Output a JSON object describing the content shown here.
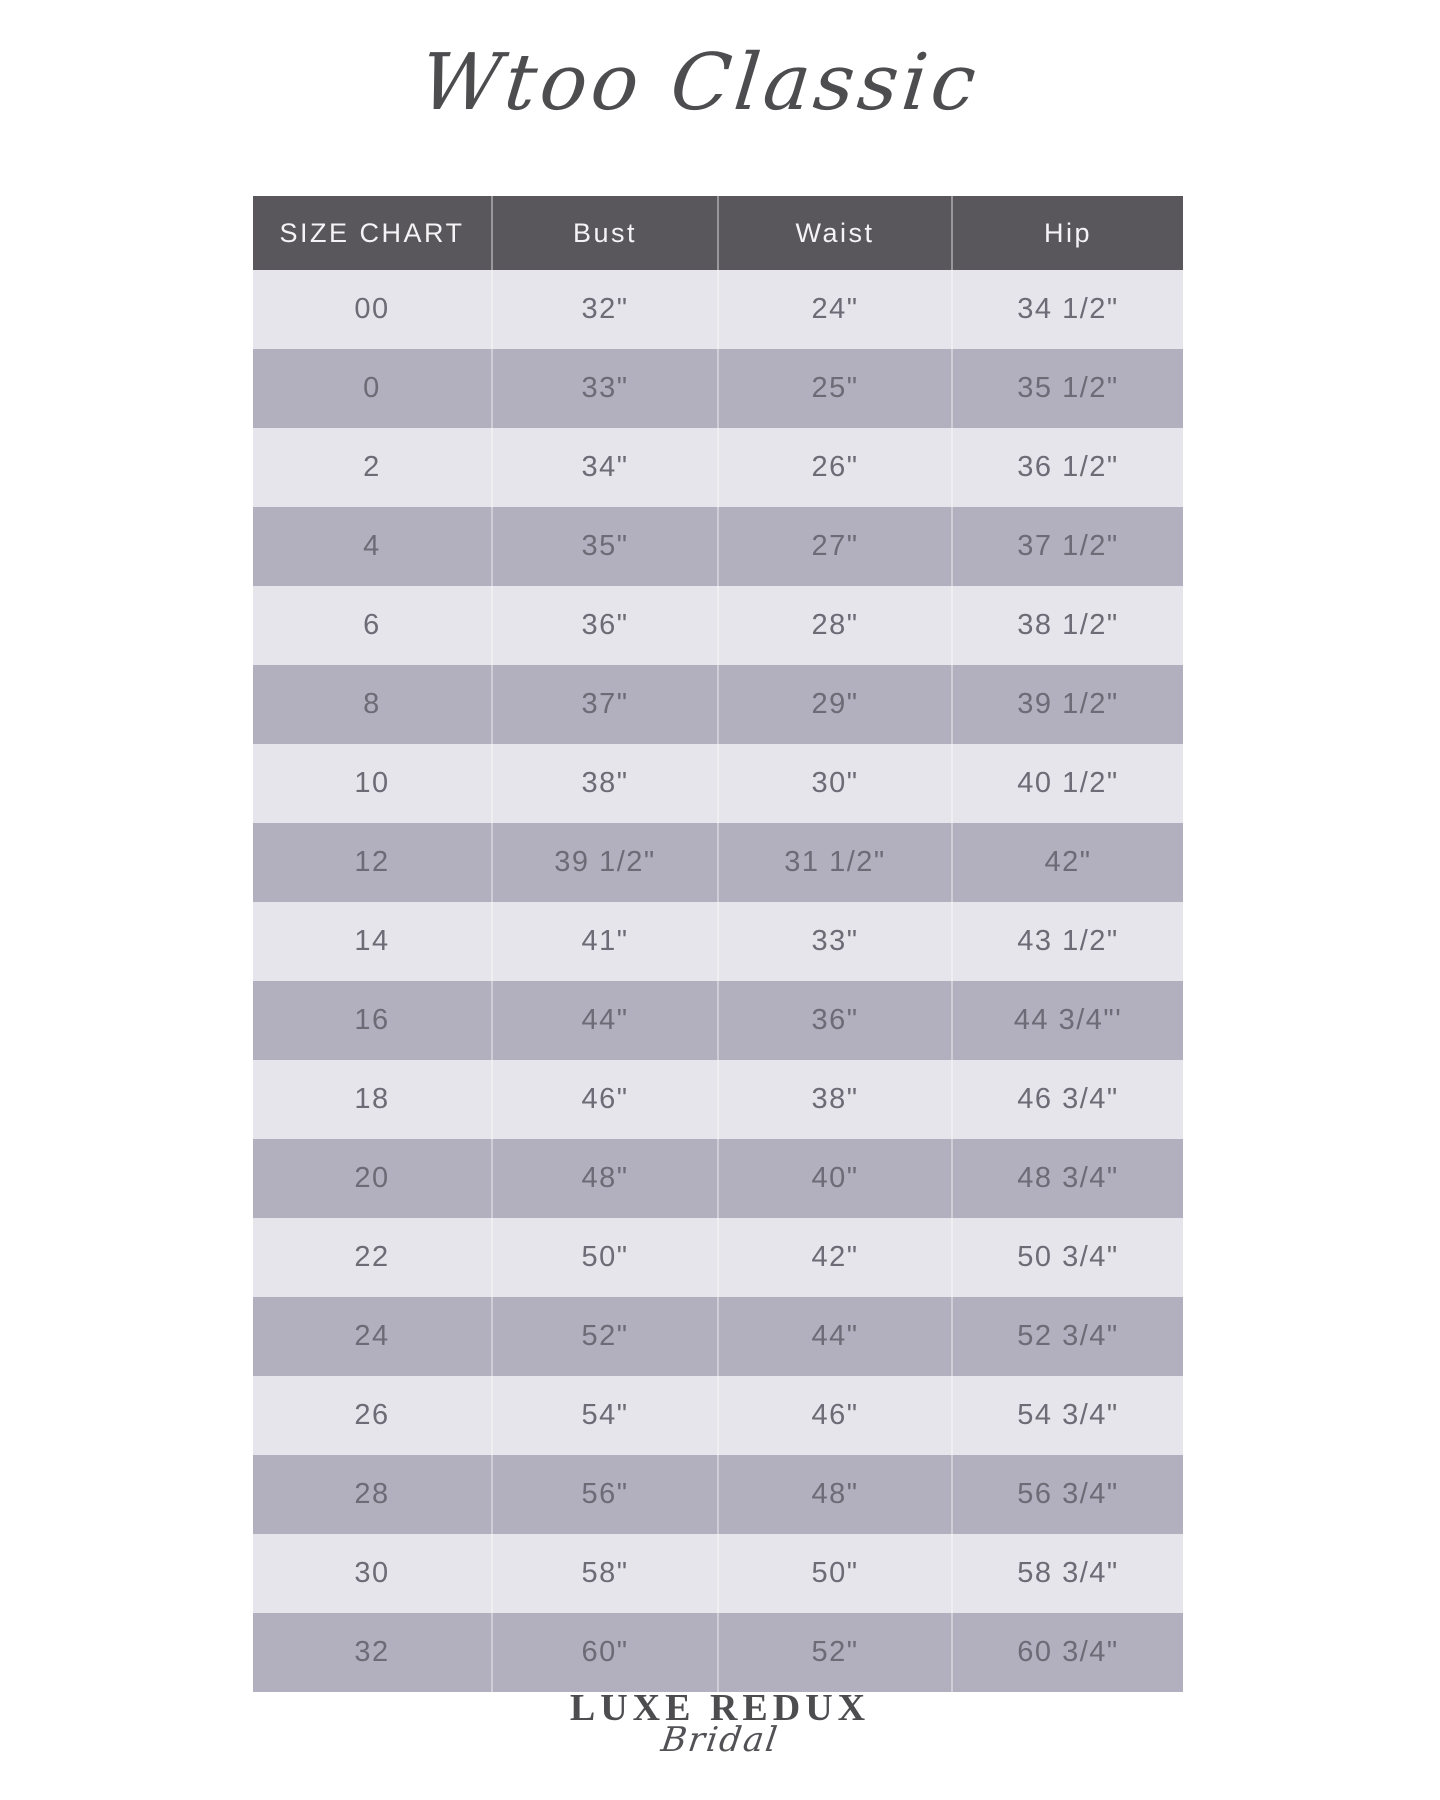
{
  "title": "Wtoo Classic",
  "chart_data": {
    "type": "table",
    "title": "Wtoo Classic",
    "columns": [
      "SIZE CHART",
      "Bust",
      "Waist",
      "Hip"
    ],
    "rows": [
      [
        "00",
        "32\"",
        "24\"",
        "34 1/2\""
      ],
      [
        "0",
        "33\"",
        "25\"",
        "35 1/2\""
      ],
      [
        "2",
        "34\"",
        "26\"",
        "36 1/2\""
      ],
      [
        "4",
        "35\"",
        "27\"",
        "37 1/2\""
      ],
      [
        "6",
        "36\"",
        "28\"",
        "38 1/2\""
      ],
      [
        "8",
        "37\"",
        "29\"",
        "39 1/2\""
      ],
      [
        "10",
        "38\"",
        "30\"",
        "40 1/2\""
      ],
      [
        "12",
        "39 1/2\"",
        "31 1/2\"",
        "42\""
      ],
      [
        "14",
        "41\"",
        "33\"",
        "43 1/2\""
      ],
      [
        "16",
        "44\"",
        "36\"",
        "44 3/4\"'"
      ],
      [
        "18",
        "46\"",
        "38\"",
        "46 3/4\""
      ],
      [
        "20",
        "48\"",
        "40\"",
        "48 3/4\""
      ],
      [
        "22",
        "50\"",
        "42\"",
        "50 3/4\""
      ],
      [
        "24",
        "52\"",
        "44\"",
        "52 3/4\""
      ],
      [
        "26",
        "54\"",
        "46\"",
        "54 3/4\""
      ],
      [
        "28",
        "56\"",
        "48\"",
        "56 3/4\""
      ],
      [
        "30",
        "58\"",
        "50\"",
        "58 3/4\""
      ],
      [
        "32",
        "60\"",
        "52\"",
        "60 3/4\""
      ]
    ],
    "layout": {
      "stripe_pattern": "alternating light/dark starting light",
      "header_position": "top",
      "grid": "column separators only"
    }
  },
  "footer": {
    "brand": "LUXE REDUX",
    "sub": "Bridal"
  },
  "colors": {
    "page-bg": "#ffffff",
    "header-bg": "#59575c",
    "header-text": "#f4f3f5",
    "row-light": "#e6e5eb",
    "row-dark": "#b2b0bf",
    "cell-text": "#6c6b76",
    "ink": "#4d4c4f"
  }
}
